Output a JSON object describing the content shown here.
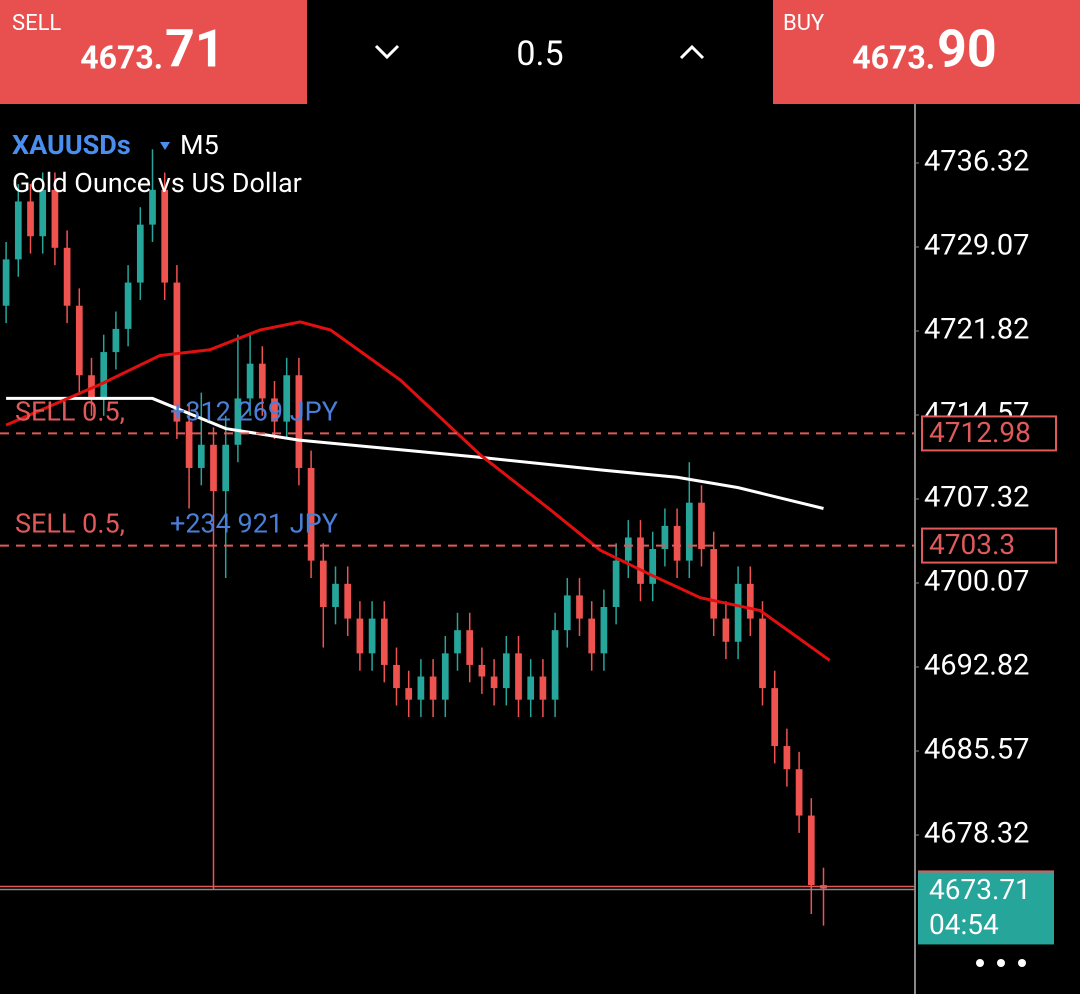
{
  "header": {
    "sell_label": "SELL",
    "sell_price_main": "4673.",
    "sell_price_big": "71",
    "lot": "0.5",
    "buy_label": "BUY",
    "buy_price_main": "4673.",
    "buy_price_big": "90"
  },
  "chart_data": {
    "type": "candlestick",
    "symbol": "XAUUSDs",
    "timeframe": "M5",
    "description": "Gold Ounce vs US Dollar",
    "ylim": [
      4664.6,
      4741.41
    ],
    "xlim": [
      -0.5,
      74.5
    ],
    "yticks": [
      4736.32,
      4729.07,
      4721.82,
      4714.57,
      4707.32,
      4700.07,
      4692.82,
      4685.57,
      4678.32
    ],
    "up_color": "#26a69a",
    "down_color": "#ef5350",
    "candles": {
      "open": [
        4724,
        4728,
        4733,
        4730,
        4734,
        4729,
        4724,
        4718,
        4716,
        4720,
        4722,
        4726,
        4731,
        4734,
        4726,
        4714,
        4710,
        4712,
        4708,
        4712,
        4716,
        4719,
        4716,
        4714,
        4718,
        4710,
        4702,
        4698,
        4700,
        4697,
        4694,
        4697,
        4693,
        4691,
        4690,
        4692,
        4690,
        4694,
        4696,
        4693,
        4692,
        4691,
        4694,
        4690,
        4692,
        4690,
        4696,
        4699,
        4697,
        4694,
        4698,
        4702,
        4704,
        4700,
        4703,
        4705,
        4702,
        4707,
        4703,
        4697,
        4695,
        4700,
        4697,
        4691,
        4686,
        4684,
        4680,
        4674
      ],
      "high": [
        4729.5,
        4734.5,
        4734.5,
        4735.5,
        4735.5,
        4730.5,
        4725.5,
        4719.5,
        4721.5,
        4723.5,
        4727.5,
        4732.5,
        4737.5,
        4735.5,
        4727.5,
        4715.5,
        4716.5,
        4713.5,
        4714.5,
        4721.5,
        4721.5,
        4720.5,
        4717.5,
        4719.5,
        4719.5,
        4711.5,
        4703.5,
        4701.5,
        4701.5,
        4698.5,
        4698.5,
        4698.5,
        4694.5,
        4692.5,
        4693.5,
        4693.5,
        4695.5,
        4697.5,
        4697.5,
        4694.5,
        4693.5,
        4695.5,
        4695.5,
        4693.5,
        4693.5,
        4697.5,
        4700.5,
        4700.5,
        4698.5,
        4699.5,
        4703.5,
        4705.5,
        4705.5,
        4704.5,
        4706.5,
        4706.5,
        4710.5,
        4708.5,
        4704.5,
        4698.5,
        4701.5,
        4701.5,
        4698.5,
        4692.5,
        4687.5,
        4685.5,
        4681.5,
        4675.5
      ],
      "low": [
        4722.5,
        4726.5,
        4728.5,
        4728.5,
        4727.5,
        4722.5,
        4716.5,
        4714.5,
        4714.5,
        4718.5,
        4720.5,
        4724.5,
        4729.5,
        4724.5,
        4712.5,
        4706.5,
        4708.5,
        4673.6,
        4700.5,
        4710.5,
        4714.5,
        4714.5,
        4712.5,
        4712.5,
        4708.5,
        4700.5,
        4694.5,
        4696.5,
        4695.5,
        4692.5,
        4692.5,
        4691.5,
        4689.5,
        4688.5,
        4688.5,
        4688.5,
        4688.5,
        4692.5,
        4691.5,
        4690.5,
        4689.5,
        4689.5,
        4688.5,
        4688.5,
        4688.5,
        4688.5,
        4694.5,
        4695.5,
        4692.5,
        4692.5,
        4696.5,
        4700.5,
        4698.5,
        4698.5,
        4701.5,
        4700.5,
        4700.5,
        4701.5,
        4695.5,
        4693.5,
        4693.5,
        4695.5,
        4689.5,
        4684.5,
        4682.5,
        4678.5,
        4671.5,
        4670.5
      ],
      "close": [
        4728,
        4733,
        4730,
        4734,
        4729,
        4724,
        4718,
        4716,
        4720,
        4722,
        4726,
        4731,
        4734,
        4726,
        4714,
        4710,
        4712,
        4708,
        4712,
        4716,
        4719,
        4716,
        4714,
        4718,
        4710,
        4702,
        4698,
        4700,
        4697,
        4694,
        4697,
        4693,
        4691,
        4690,
        4692,
        4690,
        4694,
        4696,
        4693,
        4692,
        4691,
        4694,
        4690,
        4692,
        4690,
        4696,
        4699,
        4697,
        4694,
        4698,
        4702,
        4704,
        4700,
        4703,
        4705,
        4702,
        4707,
        4703,
        4697,
        4695,
        4700,
        4697,
        4691,
        4686,
        4684,
        4680,
        4674,
        4673.71
      ]
    },
    "moving_averages": [
      {
        "color": "#ffffff",
        "x": [
          0,
          12,
          18,
          24,
          32,
          39,
          49,
          55,
          60,
          67
        ],
        "values": [
          4716.0,
          4716.0,
          4713.4,
          4712.4,
          4711.6,
          4710.9,
          4709.8,
          4709.2,
          4708.3,
          4706.5
        ]
      },
      {
        "color": "#e01010",
        "x": [
          0,
          7.7,
          12.6,
          16.7,
          20.8,
          24.1,
          26.6,
          32.3,
          38.9,
          44.6,
          48.7,
          52.8,
          56.9,
          61.8,
          67.5
        ],
        "values": [
          4713.7,
          4717.2,
          4719.7,
          4720.2,
          4721.9,
          4722.6,
          4721.9,
          4717.6,
          4711.1,
          4706.4,
          4702.9,
          4700.8,
          4698.8,
          4697.7,
          4693.4
        ]
      }
    ],
    "positions": [
      {
        "label": "SELL 0.5,",
        "profit": "+312 269 JPY",
        "price": 4712.98
      },
      {
        "label": "SELL 0.5,",
        "profit": "+234 921 JPY",
        "price": 4703.3
      }
    ],
    "current_price": 4673.71,
    "countdown": "04:54"
  }
}
